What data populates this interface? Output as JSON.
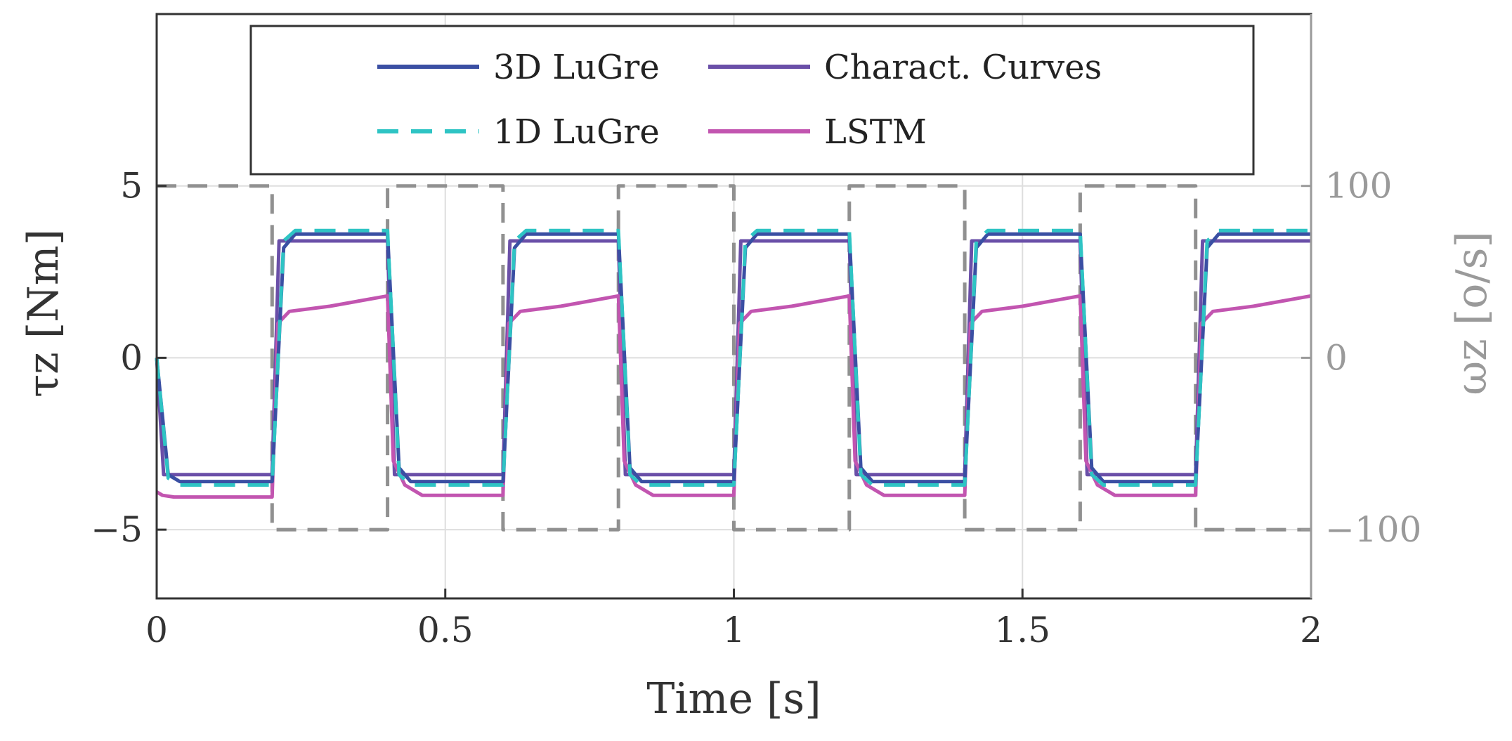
{
  "chart_data": {
    "type": "line",
    "xlabel": "Time [s]",
    "ylabel": "τz [Nm]",
    "ylabel_right": "ωz [o/s]",
    "xlim": [
      0,
      2
    ],
    "ylim": [
      -7,
      10
    ],
    "ylim_right": [
      -140,
      200
    ],
    "xticks": [
      "0",
      "0.5",
      "1",
      "1.5",
      "2"
    ],
    "yticks": [
      "−5",
      "0",
      "5"
    ],
    "yticks_right": [
      "−100",
      "0",
      "100"
    ],
    "grid": true,
    "legend_position": "top",
    "series": [
      {
        "name": "3D LuGre",
        "color": "#3a4fa3",
        "style": "solid",
        "x": [
          0,
          0.02,
          0.04,
          0.2,
          0.22,
          0.24,
          0.4,
          0.42,
          0.44,
          0.6,
          0.62,
          0.64,
          0.8,
          0.82,
          0.84,
          1.0,
          1.02,
          1.04,
          1.2,
          1.22,
          1.24,
          1.4,
          1.42,
          1.44,
          1.6,
          1.62,
          1.64,
          1.8,
          1.82,
          1.84,
          2.0
        ],
        "values": [
          0,
          -3.4,
          -3.6,
          -3.6,
          3.2,
          3.6,
          3.6,
          -3.2,
          -3.6,
          -3.6,
          3.2,
          3.6,
          3.6,
          -3.2,
          -3.6,
          -3.6,
          3.2,
          3.6,
          3.6,
          -3.2,
          -3.6,
          -3.6,
          3.2,
          3.6,
          3.6,
          -3.2,
          -3.6,
          -3.6,
          3.2,
          3.6,
          3.6
        ]
      },
      {
        "name": "1D LuGre",
        "color": "#2ec4c4",
        "style": "dashed",
        "x": [
          0,
          0.02,
          0.04,
          0.2,
          0.22,
          0.24,
          0.4,
          0.42,
          0.44,
          0.6,
          0.62,
          0.64,
          0.8,
          0.82,
          0.84,
          1.0,
          1.02,
          1.04,
          1.2,
          1.22,
          1.24,
          1.4,
          1.42,
          1.44,
          1.6,
          1.62,
          1.64,
          1.8,
          1.82,
          1.84,
          2.0
        ],
        "values": [
          0,
          -3.5,
          -3.7,
          -3.7,
          3.4,
          3.7,
          3.7,
          -3.4,
          -3.7,
          -3.7,
          3.4,
          3.7,
          3.7,
          -3.4,
          -3.7,
          -3.7,
          3.4,
          3.7,
          3.7,
          -3.4,
          -3.7,
          -3.7,
          3.4,
          3.7,
          3.7,
          -3.4,
          -3.7,
          -3.7,
          3.4,
          3.7,
          3.7
        ]
      },
      {
        "name": "Charact. Curves",
        "color": "#6a4fa8",
        "style": "solid",
        "x": [
          0,
          0.012,
          0.2,
          0.212,
          0.4,
          0.412,
          0.6,
          0.612,
          0.8,
          0.812,
          1.0,
          1.012,
          1.2,
          1.212,
          1.4,
          1.412,
          1.6,
          1.612,
          1.8,
          1.812,
          2.0
        ],
        "values": [
          0,
          -3.4,
          -3.4,
          3.4,
          3.4,
          -3.4,
          -3.4,
          3.4,
          3.4,
          -3.4,
          -3.4,
          3.4,
          3.4,
          -3.4,
          -3.4,
          3.4,
          3.4,
          -3.4,
          -3.4,
          3.4,
          3.4
        ]
      },
      {
        "name": "LSTM",
        "color": "#c255b0",
        "style": "solid",
        "x": [
          0,
          0.01,
          0.03,
          0.2,
          0.21,
          0.23,
          0.3,
          0.4,
          0.41,
          0.43,
          0.46,
          0.6,
          0.61,
          0.63,
          0.7,
          0.8,
          0.81,
          0.83,
          0.86,
          1.0,
          1.01,
          1.03,
          1.1,
          1.2,
          1.21,
          1.23,
          1.26,
          1.4,
          1.41,
          1.43,
          1.5,
          1.6,
          1.61,
          1.63,
          1.66,
          1.8,
          1.81,
          1.83,
          1.9,
          2.0
        ],
        "values": [
          -3.9,
          -4.0,
          -4.05,
          -4.05,
          1.0,
          1.35,
          1.5,
          1.8,
          -3.0,
          -3.7,
          -4.0,
          -4.0,
          1.0,
          1.35,
          1.5,
          1.8,
          -3.0,
          -3.7,
          -4.0,
          -4.0,
          1.0,
          1.35,
          1.5,
          1.8,
          -3.0,
          -3.7,
          -4.0,
          -4.0,
          1.0,
          1.35,
          1.5,
          1.8,
          -3.0,
          -3.7,
          -4.0,
          -4.0,
          1.0,
          1.35,
          1.5,
          1.8
        ]
      },
      {
        "name": "ωz",
        "color": "#909090",
        "style": "dashed",
        "axis": "right",
        "legend": false,
        "x": [
          0,
          0.2,
          0.2,
          0.4,
          0.4,
          0.6,
          0.6,
          0.8,
          0.8,
          1.0,
          1.0,
          1.2,
          1.2,
          1.4,
          1.4,
          1.6,
          1.6,
          1.8,
          1.8,
          2.0
        ],
        "values": [
          100,
          100,
          -100,
          -100,
          100,
          100,
          -100,
          -100,
          100,
          100,
          -100,
          -100,
          100,
          100,
          -100,
          -100,
          100,
          100,
          -100,
          -100
        ]
      }
    ]
  }
}
